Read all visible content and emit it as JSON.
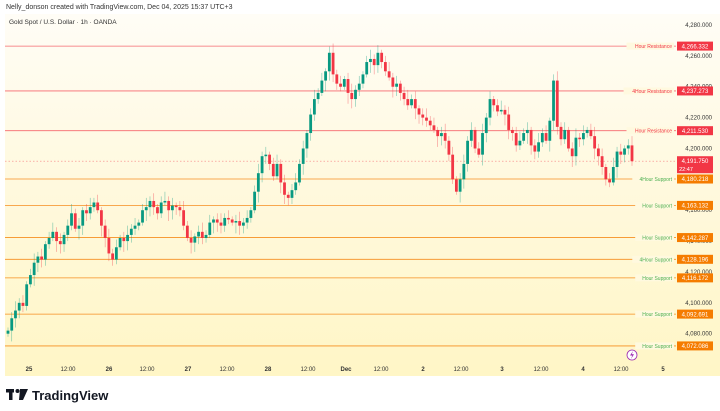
{
  "header": {
    "credit": "Nelly_donson created with TradingView.com, Dec 04, 2025 15:37 UTC+3",
    "symbol": "Gold Spot / U.S. Dollar · 1h · OANDA"
  },
  "branding": {
    "logo_mark": "TV",
    "logo_text": "TradingView"
  },
  "colors": {
    "up": "#089981",
    "down": "#f23645",
    "resistance": "#f23645",
    "support_line": "#f57c00",
    "support_text": "#4caf50",
    "axis_text": "#333333",
    "lightning": "#9c27b0"
  },
  "current_price": {
    "value": "4,191.750",
    "countdown": "22:47"
  },
  "chart_data": {
    "type": "candlestick",
    "title": "Gold Spot / U.S. Dollar · 1h · OANDA",
    "xlabel": "",
    "ylabel": "",
    "ylim": [
      4065,
      4285
    ],
    "y_ticks": [
      "4,280.000",
      "4,260.000",
      "4,240.000",
      "4,220.000",
      "4,200.000",
      "4,180.000",
      "4,160.000",
      "4,140.000",
      "4,120.000",
      "4,100.000",
      "4,080.000"
    ],
    "x_ticks": [
      "25",
      "12:00",
      "26",
      "12:00",
      "27",
      "12:00",
      "28",
      "12:00",
      "Dec",
      "12:00",
      "2",
      "12:00",
      "3",
      "12:00",
      "4",
      "12:00",
      "5"
    ],
    "levels": [
      {
        "label": "Hour Resistance",
        "value": "4,266.332",
        "type": "resistance"
      },
      {
        "label": "4Hour Resistance",
        "value": "4,237.273",
        "type": "resistance"
      },
      {
        "label": "Hour Resistance",
        "value": "4,211.530",
        "type": "resistance"
      },
      {
        "label": "4Hour Support",
        "value": "4,180.218",
        "type": "support"
      },
      {
        "label": "Hour Support",
        "value": "4,163.132",
        "type": "support"
      },
      {
        "label": "Hour Support",
        "value": "4,142.287",
        "type": "support"
      },
      {
        "label": "4Hour Support",
        "value": "4,128.196",
        "type": "support"
      },
      {
        "label": "Hour Support",
        "value": "4,116.172",
        "type": "support"
      },
      {
        "label": "Hour Support",
        "value": "4,092.691",
        "type": "support"
      },
      {
        "label": "Hour Support",
        "value": "4,072.086",
        "type": "support"
      }
    ],
    "grid": false,
    "legend": "none",
    "series_summary": "Hourly gold candles rising from ~4,085 on Nov 25 to a peak near ~4,264 on Dec 1, then consolidating between ~4,170 and ~4,240, last at 4,191.750"
  }
}
